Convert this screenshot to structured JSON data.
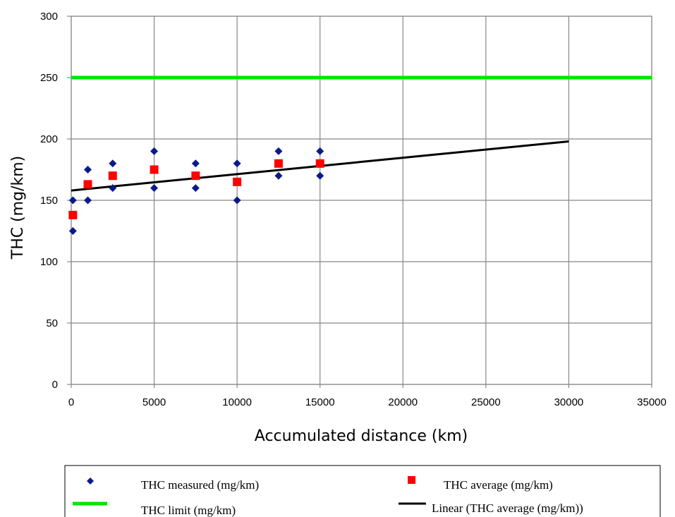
{
  "chart_data": {
    "type": "scatter",
    "xlabel": "Accumulated distance (km)",
    "ylabel": "THC  (mg/km)",
    "xlim": [
      0,
      35000
    ],
    "ylim": [
      0,
      300
    ],
    "x_ticks": [
      0,
      5000,
      10000,
      15000,
      20000,
      25000,
      30000,
      35000
    ],
    "y_ticks": [
      0,
      50,
      100,
      150,
      200,
      250,
      300
    ],
    "x_tick_labels": [
      "0",
      "5000",
      "10000",
      "15000",
      "20000",
      "25000",
      "30000",
      "35000"
    ],
    "y_tick_labels": [
      "0",
      "50",
      "100",
      "150",
      "200",
      "250",
      "300"
    ],
    "grid": true,
    "legend_position": "bottom",
    "series": [
      {
        "name": "THC measured (mg/km)",
        "kind": "points",
        "marker": "diamond",
        "color": "#0a1a8a",
        "points": [
          [
            100,
            125
          ],
          [
            100,
            150
          ],
          [
            1000,
            150
          ],
          [
            1000,
            175
          ],
          [
            2500,
            160
          ],
          [
            2500,
            180
          ],
          [
            5000,
            160
          ],
          [
            5000,
            190
          ],
          [
            7500,
            160
          ],
          [
            7500,
            180
          ],
          [
            10000,
            150
          ],
          [
            10000,
            180
          ],
          [
            12500,
            170
          ],
          [
            12500,
            190
          ],
          [
            15000,
            170
          ],
          [
            15000,
            190
          ]
        ]
      },
      {
        "name": "THC average (mg/km)",
        "kind": "points",
        "marker": "square",
        "color": "#ff0000",
        "points": [
          [
            100,
            138
          ],
          [
            1000,
            163
          ],
          [
            2500,
            170
          ],
          [
            5000,
            175
          ],
          [
            7500,
            170
          ],
          [
            10000,
            165
          ],
          [
            12500,
            180
          ],
          [
            15000,
            180
          ]
        ]
      },
      {
        "name": "THC limit (mg/km)",
        "kind": "line",
        "color": "#00e600",
        "points": [
          [
            0,
            250
          ],
          [
            35000,
            250
          ]
        ]
      },
      {
        "name": "Linear (THC average (mg/km))",
        "kind": "line",
        "color": "#000000",
        "points": [
          [
            0,
            158
          ],
          [
            30000,
            198
          ]
        ]
      }
    ]
  }
}
